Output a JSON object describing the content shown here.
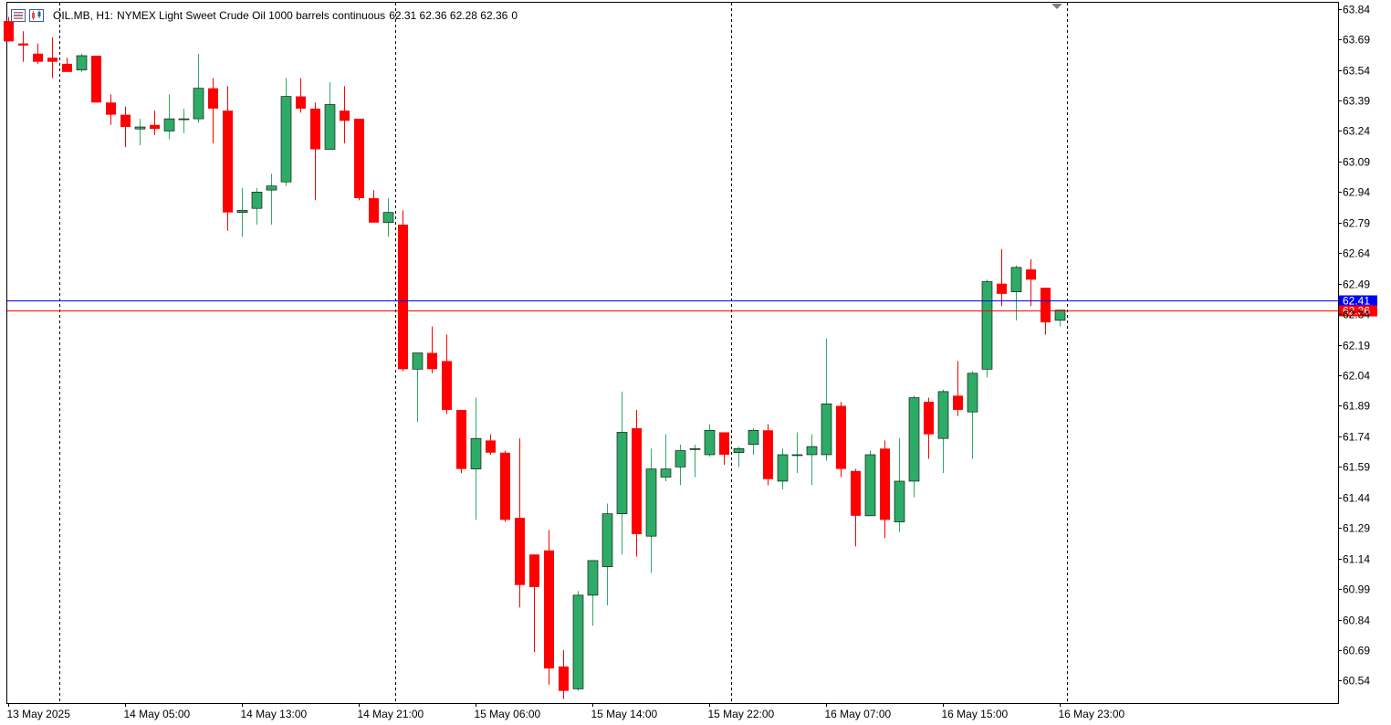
{
  "header": {
    "symbol": "OIL.MB, H1:",
    "description": "NYMEX Light Sweet Crude Oil 1000 barrels continuous",
    "ohlc": "62.31 62.36 62.28 62.36",
    "tick_volume": "0",
    "icons": [
      "list-icon",
      "chart-ohlc-icon"
    ]
  },
  "colors": {
    "bull": "#2eab66",
    "bear": "#ff0000",
    "grid": "#000000",
    "axis": "#000000",
    "bid_line": "#ff0000",
    "ask_line": "#0000ff"
  },
  "chart_data": {
    "type": "candlestick",
    "title": "",
    "xlabel": "",
    "ylabel": "",
    "ylim": [
      60.43,
      63.87
    ],
    "y_ticks": [
      "63.84",
      "63.69",
      "63.54",
      "63.39",
      "63.24",
      "63.09",
      "62.94",
      "62.79",
      "62.64",
      "62.49",
      "62.34",
      "62.19",
      "62.04",
      "61.89",
      "61.74",
      "61.59",
      "61.44",
      "61.29",
      "61.14",
      "60.99",
      "60.84",
      "60.69",
      "60.54"
    ],
    "x_ticks": [
      {
        "label": "13 May 2025",
        "bar": 0
      },
      {
        "label": "14 May 05:00",
        "bar": 8
      },
      {
        "label": "14 May 13:00",
        "bar": 16
      },
      {
        "label": "14 May 21:00",
        "bar": 24
      },
      {
        "label": "15 May 06:00",
        "bar": 32
      },
      {
        "label": "15 May 14:00",
        "bar": 40
      },
      {
        "label": "15 May 22:00",
        "bar": 48
      },
      {
        "label": "16 May 07:00",
        "bar": 56
      },
      {
        "label": "16 May 15:00",
        "bar": 64
      },
      {
        "label": "16 May 23:00",
        "bar": 72
      }
    ],
    "period_separators_after_bar": [
      3,
      26,
      49,
      72
    ],
    "bid_price": "62.36",
    "ask_price": "62.41",
    "bid_value": 62.36,
    "ask_value": 62.41,
    "candles": [
      {
        "o": 63.78,
        "h": 63.8,
        "l": 63.68,
        "c": 63.68
      },
      {
        "o": 63.67,
        "h": 63.73,
        "l": 63.58,
        "c": 63.66
      },
      {
        "o": 63.62,
        "h": 63.67,
        "l": 63.57,
        "c": 63.58
      },
      {
        "o": 63.6,
        "h": 63.7,
        "l": 63.5,
        "c": 63.58
      },
      {
        "o": 63.57,
        "h": 63.6,
        "l": 63.53,
        "c": 63.53
      },
      {
        "o": 63.54,
        "h": 63.62,
        "l": 63.53,
        "c": 63.61
      },
      {
        "o": 63.61,
        "h": 63.61,
        "l": 63.38,
        "c": 63.38
      },
      {
        "o": 63.38,
        "h": 63.42,
        "l": 63.27,
        "c": 63.32
      },
      {
        "o": 63.32,
        "h": 63.36,
        "l": 63.16,
        "c": 63.26
      },
      {
        "o": 63.25,
        "h": 63.3,
        "l": 63.17,
        "c": 63.26
      },
      {
        "o": 63.27,
        "h": 63.34,
        "l": 63.22,
        "c": 63.25
      },
      {
        "o": 63.24,
        "h": 63.42,
        "l": 63.2,
        "c": 63.3
      },
      {
        "o": 63.3,
        "h": 63.35,
        "l": 63.23,
        "c": 63.3
      },
      {
        "o": 63.3,
        "h": 63.62,
        "l": 63.28,
        "c": 63.45
      },
      {
        "o": 63.45,
        "h": 63.5,
        "l": 63.18,
        "c": 63.35
      },
      {
        "o": 63.34,
        "h": 63.46,
        "l": 62.75,
        "c": 62.84
      },
      {
        "o": 62.84,
        "h": 62.96,
        "l": 62.72,
        "c": 62.85
      },
      {
        "o": 62.86,
        "h": 62.96,
        "l": 62.78,
        "c": 62.94
      },
      {
        "o": 62.95,
        "h": 63.03,
        "l": 62.78,
        "c": 62.97
      },
      {
        "o": 62.99,
        "h": 63.5,
        "l": 62.97,
        "c": 63.41
      },
      {
        "o": 63.41,
        "h": 63.5,
        "l": 63.33,
        "c": 63.35
      },
      {
        "o": 63.35,
        "h": 63.38,
        "l": 62.9,
        "c": 63.15
      },
      {
        "o": 63.15,
        "h": 63.48,
        "l": 63.15,
        "c": 63.37
      },
      {
        "o": 63.34,
        "h": 63.46,
        "l": 63.18,
        "c": 63.29
      },
      {
        "o": 63.3,
        "h": 63.3,
        "l": 62.9,
        "c": 62.91
      },
      {
        "o": 62.91,
        "h": 62.95,
        "l": 62.79,
        "c": 62.79
      },
      {
        "o": 62.79,
        "h": 62.91,
        "l": 62.72,
        "c": 62.84
      },
      {
        "o": 62.78,
        "h": 62.85,
        "l": 62.06,
        "c": 62.07
      },
      {
        "o": 62.07,
        "h": 62.15,
        "l": 61.81,
        "c": 62.15
      },
      {
        "o": 62.15,
        "h": 62.28,
        "l": 62.05,
        "c": 62.07
      },
      {
        "o": 62.11,
        "h": 62.24,
        "l": 61.85,
        "c": 61.87
      },
      {
        "o": 61.87,
        "h": 61.87,
        "l": 61.56,
        "c": 61.58
      },
      {
        "o": 61.58,
        "h": 61.93,
        "l": 61.33,
        "c": 61.73
      },
      {
        "o": 61.72,
        "h": 61.75,
        "l": 61.65,
        "c": 61.66
      },
      {
        "o": 61.66,
        "h": 61.67,
        "l": 61.32,
        "c": 61.33
      },
      {
        "o": 61.34,
        "h": 61.73,
        "l": 60.9,
        "c": 61.01
      },
      {
        "o": 61.16,
        "h": 61.16,
        "l": 60.68,
        "c": 61.0
      },
      {
        "o": 61.18,
        "h": 61.28,
        "l": 60.52,
        "c": 60.6
      },
      {
        "o": 60.61,
        "h": 60.69,
        "l": 60.45,
        "c": 60.49
      },
      {
        "o": 60.5,
        "h": 60.98,
        "l": 60.49,
        "c": 60.96
      },
      {
        "o": 60.96,
        "h": 61.13,
        "l": 60.81,
        "c": 61.13
      },
      {
        "o": 61.1,
        "h": 61.41,
        "l": 60.91,
        "c": 61.36
      },
      {
        "o": 61.36,
        "h": 61.96,
        "l": 61.16,
        "c": 61.76
      },
      {
        "o": 61.78,
        "h": 61.87,
        "l": 61.15,
        "c": 61.26
      },
      {
        "o": 61.25,
        "h": 61.68,
        "l": 61.07,
        "c": 61.58
      },
      {
        "o": 61.54,
        "h": 61.75,
        "l": 61.52,
        "c": 61.58
      },
      {
        "o": 61.59,
        "h": 61.7,
        "l": 61.5,
        "c": 61.67
      },
      {
        "o": 61.68,
        "h": 61.7,
        "l": 61.54,
        "c": 61.68
      },
      {
        "o": 61.65,
        "h": 61.8,
        "l": 61.64,
        "c": 61.77
      },
      {
        "o": 61.76,
        "h": 61.76,
        "l": 61.6,
        "c": 61.65
      },
      {
        "o": 61.66,
        "h": 61.69,
        "l": 61.59,
        "c": 61.68
      },
      {
        "o": 61.7,
        "h": 61.78,
        "l": 61.65,
        "c": 61.77
      },
      {
        "o": 61.77,
        "h": 61.8,
        "l": 61.5,
        "c": 61.53
      },
      {
        "o": 61.52,
        "h": 61.68,
        "l": 61.48,
        "c": 61.65
      },
      {
        "o": 61.65,
        "h": 61.76,
        "l": 61.56,
        "c": 61.65
      },
      {
        "o": 61.65,
        "h": 61.75,
        "l": 61.5,
        "c": 61.69
      },
      {
        "o": 61.65,
        "h": 62.22,
        "l": 61.62,
        "c": 61.9
      },
      {
        "o": 61.89,
        "h": 61.91,
        "l": 61.54,
        "c": 61.58
      },
      {
        "o": 61.57,
        "h": 61.58,
        "l": 61.2,
        "c": 61.35
      },
      {
        "o": 61.35,
        "h": 61.67,
        "l": 61.35,
        "c": 61.65
      },
      {
        "o": 61.68,
        "h": 61.72,
        "l": 61.24,
        "c": 61.33
      },
      {
        "o": 61.32,
        "h": 61.73,
        "l": 61.27,
        "c": 61.52
      },
      {
        "o": 61.52,
        "h": 61.94,
        "l": 61.44,
        "c": 61.93
      },
      {
        "o": 61.91,
        "h": 61.93,
        "l": 61.63,
        "c": 61.75
      },
      {
        "o": 61.73,
        "h": 61.97,
        "l": 61.56,
        "c": 61.96
      },
      {
        "o": 61.94,
        "h": 62.11,
        "l": 61.84,
        "c": 61.87
      },
      {
        "o": 61.86,
        "h": 62.06,
        "l": 61.63,
        "c": 62.05
      },
      {
        "o": 62.07,
        "h": 62.51,
        "l": 62.03,
        "c": 62.5
      },
      {
        "o": 62.49,
        "h": 62.66,
        "l": 62.38,
        "c": 62.44
      },
      {
        "o": 62.45,
        "h": 62.58,
        "l": 62.31,
        "c": 62.57
      },
      {
        "o": 62.56,
        "h": 62.61,
        "l": 62.38,
        "c": 62.51
      },
      {
        "o": 62.47,
        "h": 62.47,
        "l": 62.24,
        "c": 62.3
      },
      {
        "o": 62.31,
        "h": 62.36,
        "l": 62.28,
        "c": 62.36
      }
    ]
  }
}
